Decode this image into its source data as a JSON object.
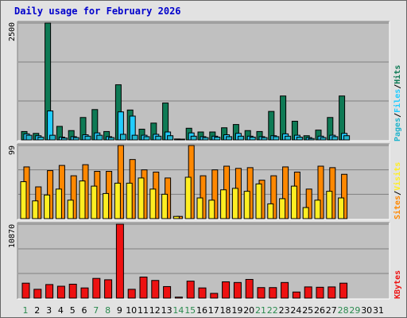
{
  "title": "Daily usage for February 2026",
  "colors": {
    "hits": "#0e7a55",
    "files": "#22ccff",
    "pages": "#22b4cc",
    "sites": "#ff8800",
    "visits": "#ffee22",
    "kbytes": "#ee1111",
    "weekday_label": "#006600",
    "weekend_label": "#2a8a4e",
    "panel_bg": "#c0c0c0",
    "frame_bg": "#e2e2e2"
  },
  "chart_data": [
    {
      "type": "bar",
      "title": "Daily usage for February 2026",
      "categories": [
        "1",
        "2",
        "3",
        "4",
        "5",
        "6",
        "7",
        "8",
        "9",
        "10",
        "11",
        "12",
        "13",
        "14",
        "15",
        "16",
        "17",
        "18",
        "19",
        "20",
        "21",
        "22",
        "23",
        "24",
        "25",
        "26",
        "27",
        "28",
        "29",
        "30",
        "31"
      ],
      "weekend_days": [
        "1",
        "7",
        "8",
        "14",
        "15",
        "21",
        "22",
        "28",
        "29"
      ],
      "ylim": [
        0,
        2500
      ],
      "y_tick_label": "2500",
      "right_label": {
        "hits": "Hits",
        "files": "Files",
        "pages": "Pages",
        "sep": "/"
      },
      "series": [
        {
          "name": "Hits",
          "values": [
            180,
            140,
            2500,
            290,
            200,
            480,
            650,
            180,
            1180,
            640,
            230,
            360,
            790,
            20,
            250,
            170,
            170,
            260,
            330,
            200,
            180,
            610,
            940,
            400,
            90,
            210,
            480,
            940,
            0,
            0,
            0
          ]
        },
        {
          "name": "Files",
          "values": [
            130,
            90,
            620,
            60,
            70,
            110,
            150,
            70,
            600,
            510,
            100,
            120,
            170,
            5,
            150,
            70,
            80,
            110,
            140,
            80,
            70,
            90,
            130,
            100,
            50,
            80,
            100,
            140,
            0,
            0,
            0
          ]
        },
        {
          "name": "Pages",
          "values": [
            100,
            60,
            100,
            40,
            50,
            80,
            100,
            50,
            120,
            100,
            70,
            80,
            90,
            5,
            80,
            50,
            60,
            70,
            80,
            60,
            50,
            70,
            80,
            60,
            30,
            50,
            70,
            90,
            0,
            0,
            0
          ]
        }
      ]
    },
    {
      "type": "bar",
      "categories": [
        "1",
        "2",
        "3",
        "4",
        "5",
        "6",
        "7",
        "8",
        "9",
        "10",
        "11",
        "12",
        "13",
        "14",
        "15",
        "16",
        "17",
        "18",
        "19",
        "20",
        "21",
        "22",
        "23",
        "24",
        "25",
        "26",
        "27",
        "28",
        "29",
        "30",
        "31"
      ],
      "ylim": [
        0,
        99
      ],
      "y_tick_label": "99",
      "right_label": {
        "sites": "Sites",
        "visits": "Visits",
        "sep": "/"
      },
      "series": [
        {
          "name": "Sites",
          "values": [
            70,
            43,
            65,
            72,
            58,
            73,
            64,
            64,
            99,
            80,
            66,
            63,
            55,
            3,
            99,
            58,
            66,
            71,
            68,
            69,
            52,
            58,
            70,
            63,
            40,
            71,
            69,
            60,
            0,
            0,
            0
          ]
        },
        {
          "name": "Visits",
          "values": [
            50,
            24,
            32,
            40,
            25,
            51,
            44,
            34,
            48,
            48,
            55,
            40,
            33,
            3,
            56,
            28,
            25,
            39,
            41,
            37,
            47,
            20,
            27,
            44,
            15,
            25,
            37,
            28,
            0,
            0,
            0
          ]
        }
      ]
    },
    {
      "type": "bar",
      "categories": [
        "1",
        "2",
        "3",
        "4",
        "5",
        "6",
        "7",
        "8",
        "9",
        "10",
        "11",
        "12",
        "13",
        "14",
        "15",
        "16",
        "17",
        "18",
        "19",
        "20",
        "21",
        "22",
        "23",
        "24",
        "25",
        "26",
        "27",
        "28",
        "29",
        "30",
        "31"
      ],
      "ylim": [
        0,
        10870
      ],
      "y_tick_label": "10870",
      "right_label": {
        "kbytes": "KBytes"
      },
      "series": [
        {
          "name": "KBytes",
          "values": [
            2200,
            1300,
            2000,
            1750,
            2050,
            1500,
            2900,
            2700,
            10870,
            1300,
            3100,
            2600,
            1700,
            150,
            2500,
            1500,
            700,
            2400,
            2300,
            2750,
            1550,
            1550,
            2300,
            900,
            1650,
            1600,
            1650,
            2200,
            0,
            0,
            0
          ]
        }
      ]
    }
  ]
}
